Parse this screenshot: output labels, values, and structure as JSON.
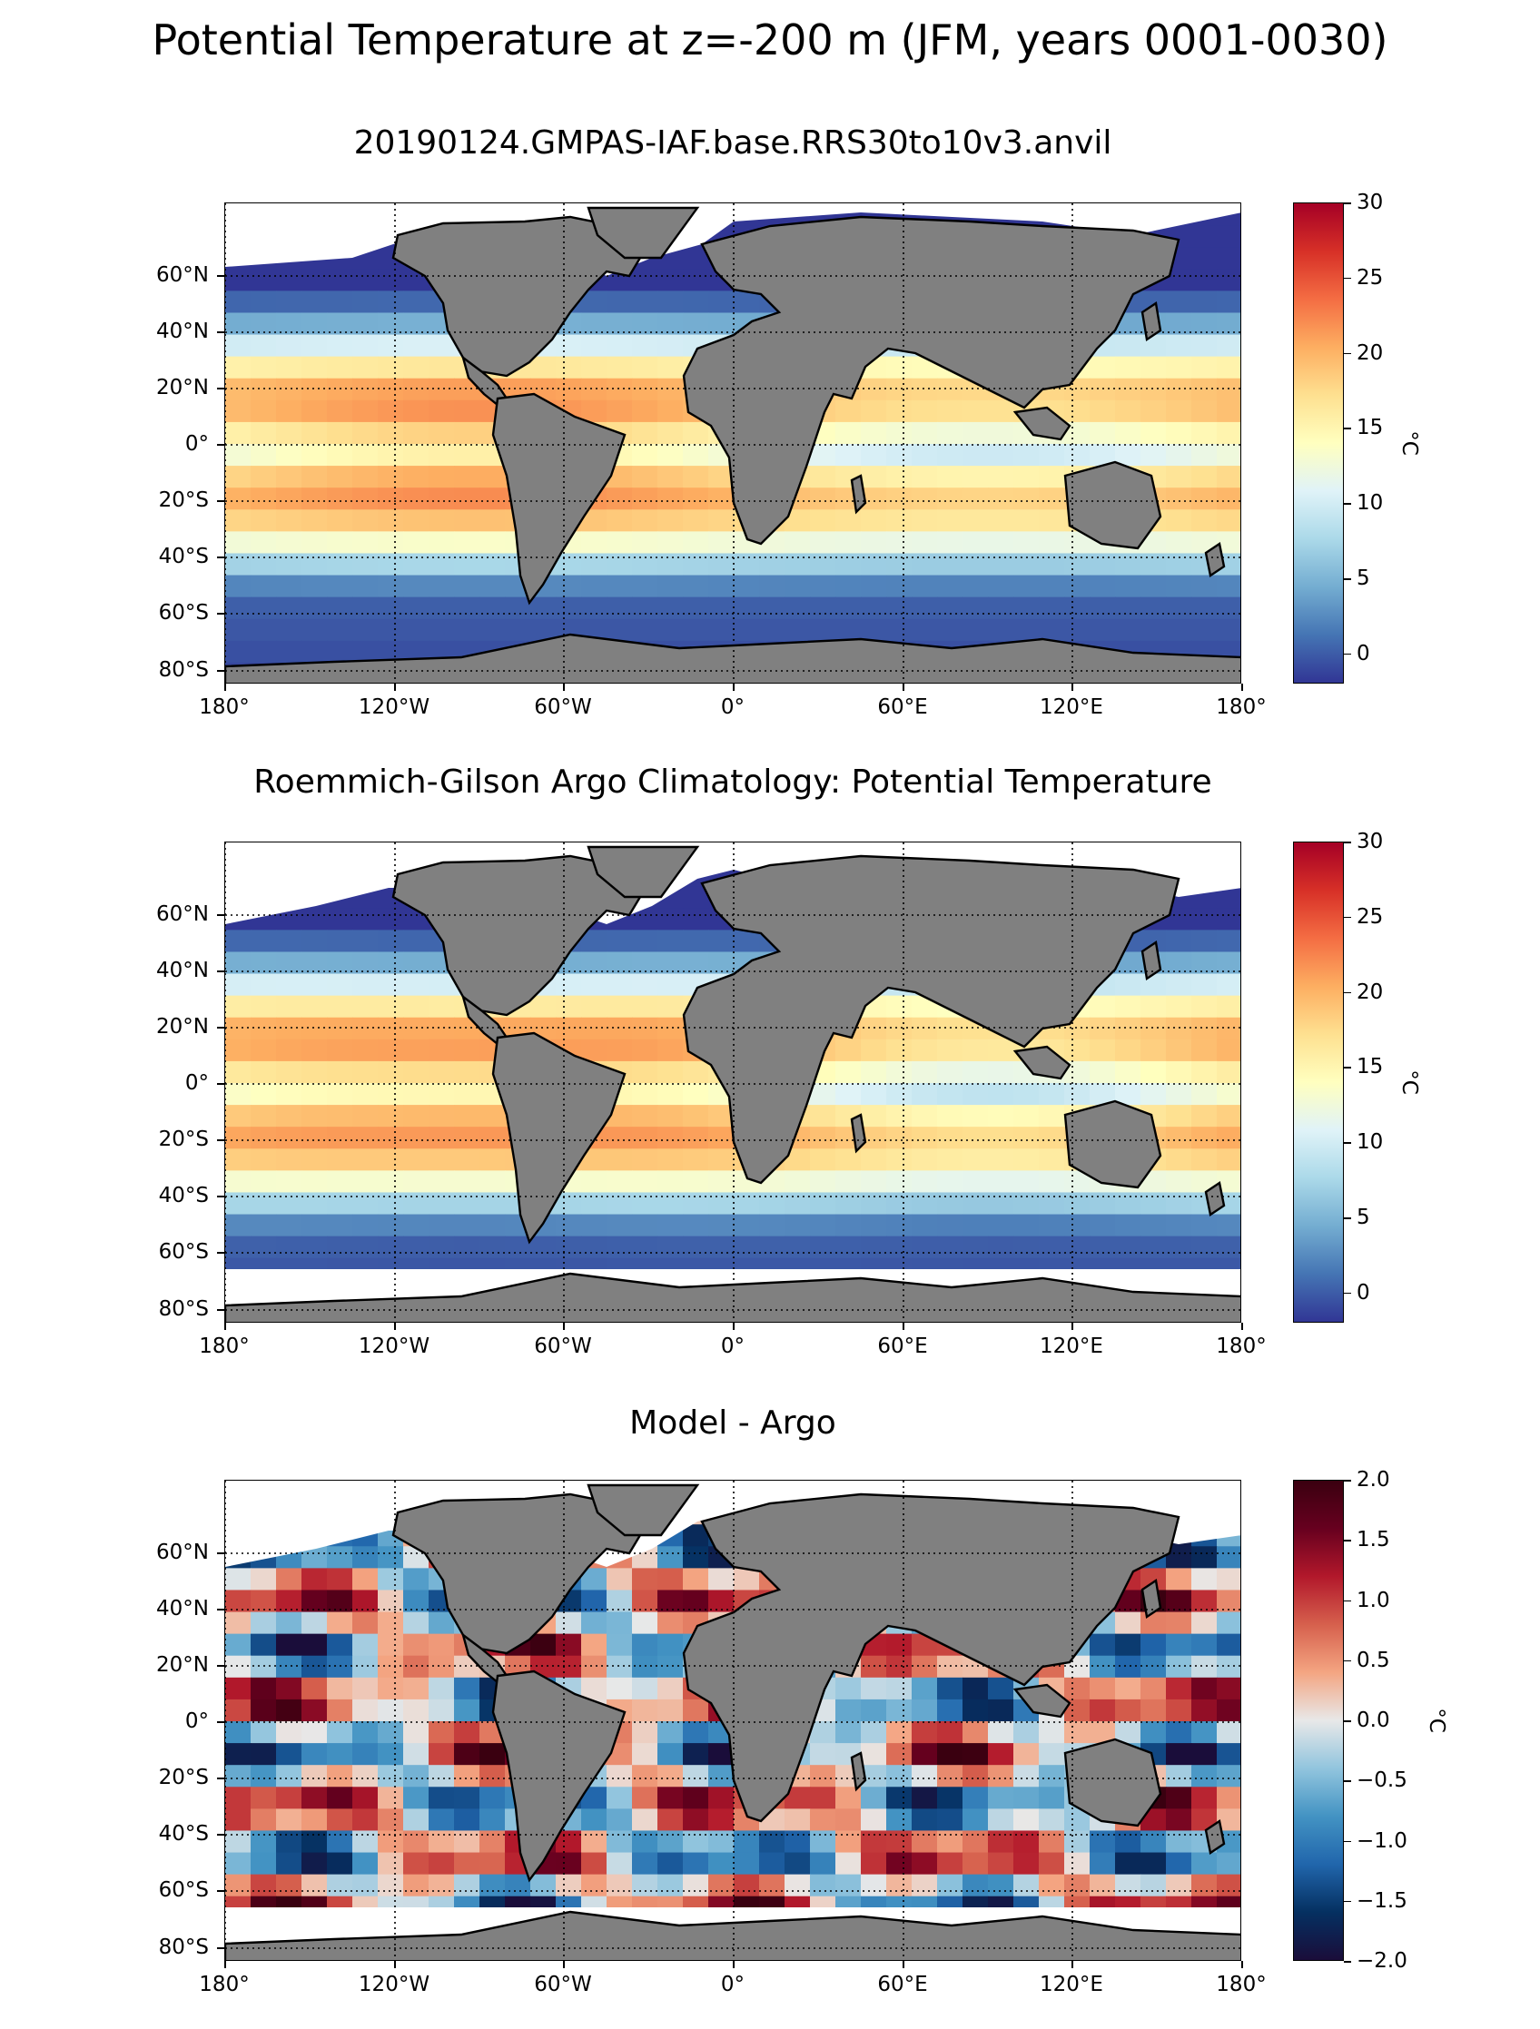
{
  "suptitle": "Potential Temperature at z=-200 m (JFM, years 0001-0030)",
  "panels": [
    {
      "title": "20190124.GMPAS-IAF.base.RRS30to10v3.anvil",
      "field": "model",
      "colormap": "RdYlBu_r",
      "colorbar": {
        "ticks": [
          "30",
          "25",
          "20",
          "15",
          "10",
          "5",
          "0"
        ],
        "unit": "°C",
        "vmin": -2,
        "vmax": 30
      }
    },
    {
      "title": "Roemmich-Gilson Argo Climatology: Potential Temperature",
      "field": "obs",
      "colormap": "RdYlBu_r",
      "colorbar": {
        "ticks": [
          "30",
          "25",
          "20",
          "15",
          "10",
          "5",
          "0"
        ],
        "unit": "°C",
        "vmin": -2,
        "vmax": 30
      }
    },
    {
      "title": "Model - Argo",
      "field": "diff",
      "colormap": "RdBu_r",
      "colorbar": {
        "ticks": [
          "2.0",
          "1.5",
          "1.0",
          "0.5",
          "0.0",
          "−0.5",
          "−1.0",
          "−1.5",
          "−2.0"
        ],
        "unit": "°C",
        "vmin": -2,
        "vmax": 2
      }
    }
  ],
  "lat_ticks": [
    "60°N",
    "40°N",
    "20°N",
    "0°",
    "20°S",
    "40°S",
    "60°S",
    "80°S"
  ],
  "lon_ticks": [
    "180°",
    "120°W",
    "60°W",
    "0°",
    "60°E",
    "120°E",
    "180°"
  ],
  "colors": {
    "land": "#808080",
    "no_data": "#ffffff",
    "grid": "#000000"
  }
}
